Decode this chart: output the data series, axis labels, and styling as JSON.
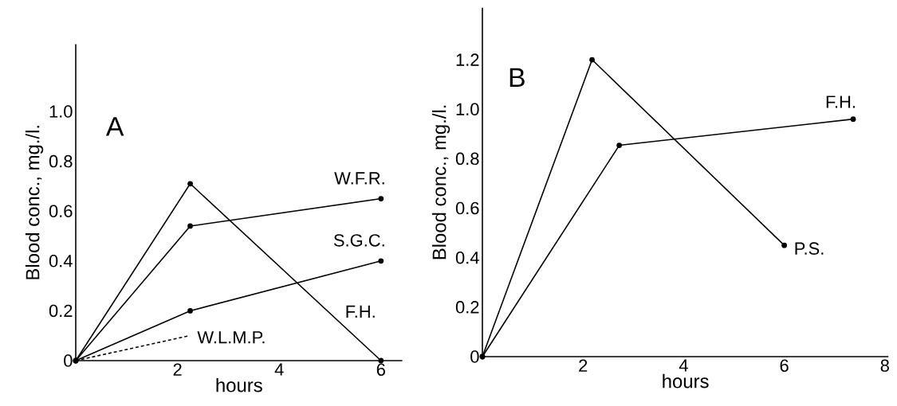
{
  "chart_data": [
    {
      "type": "line",
      "title": "A",
      "xlabel": "hours",
      "ylabel": "Blood conc., mg./l.",
      "xlim": [
        0,
        6.42
      ],
      "ylim": [
        0,
        1.27
      ],
      "xticks": [
        2,
        4,
        6
      ],
      "yticks": [
        0,
        0.2,
        0.4,
        0.6,
        0.8,
        {
          "value": 1,
          "label": "1.0"
        }
      ],
      "marker": "circle",
      "series": [
        {
          "name": "W.F.R.",
          "color": "#000000",
          "x": [
            0,
            2.25,
            6
          ],
          "values": [
            0,
            0.54,
            0.65
          ]
        },
        {
          "name": "S.G.C.",
          "color": "#000000",
          "x": [
            0,
            2.25,
            6
          ],
          "values": [
            0,
            0.2,
            0.4
          ]
        },
        {
          "name": "F.H.",
          "color": "#000000",
          "x": [
            0,
            2.25,
            6
          ],
          "values": [
            0,
            0.71,
            0
          ]
        },
        {
          "name": "W.L.M.P.",
          "color": "#000000",
          "x": [
            0,
            2.23
          ],
          "values": [
            0,
            0.1
          ],
          "line_style": "dashed",
          "marker": "none"
        }
      ]
    },
    {
      "type": "line",
      "title": "B",
      "xlabel": "hours",
      "ylabel": "Blood conc., mg./l.",
      "xlim": [
        0,
        8.07
      ],
      "ylim": [
        0,
        1.41
      ],
      "xticks": [
        2,
        4,
        6,
        8
      ],
      "yticks": [
        0,
        0.2,
        0.4,
        0.6,
        0.8,
        {
          "value": 1,
          "label": "1.0"
        },
        1.2
      ],
      "marker": "circle",
      "series": [
        {
          "name": "P.S.",
          "color": "#000000",
          "x": [
            0,
            2.18,
            6
          ],
          "values": [
            0,
            1.2,
            0.45
          ]
        },
        {
          "name": "F.H.",
          "color": "#000000",
          "x": [
            0,
            2.72,
            7.37
          ],
          "values": [
            0,
            0.854,
            0.96
          ]
        }
      ]
    }
  ]
}
